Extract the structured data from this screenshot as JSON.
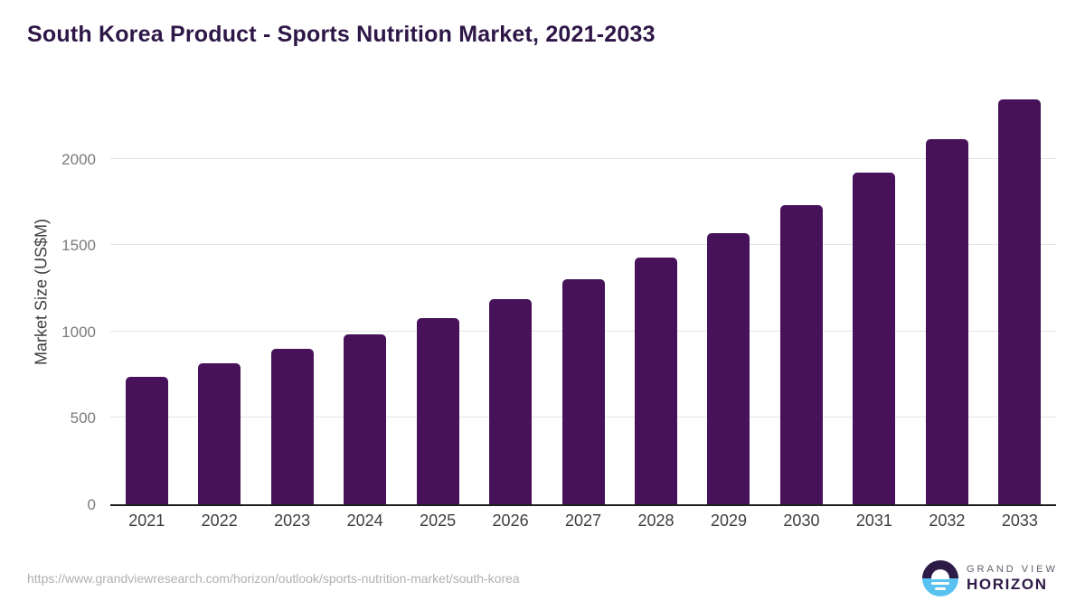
{
  "title": "South Korea Product - Sports Nutrition Market, 2021-2033",
  "chart_data": {
    "type": "bar",
    "title": "South Korea Product - Sports Nutrition Market, 2021-2033",
    "categories": [
      "2021",
      "2022",
      "2023",
      "2024",
      "2025",
      "2026",
      "2027",
      "2028",
      "2029",
      "2030",
      "2031",
      "2032",
      "2033"
    ],
    "values": [
      740,
      815,
      897,
      982,
      1076,
      1186,
      1300,
      1428,
      1570,
      1731,
      1918,
      2113,
      2344
    ],
    "xlabel": "",
    "ylabel": "Market Size (US$M)",
    "ylim": [
      0,
      2450
    ],
    "yticks": [
      0,
      500,
      1000,
      1500,
      2000
    ],
    "grid": true,
    "legend": "none",
    "bar_color": "#47125a"
  },
  "colors": {
    "title": "#2e1647",
    "bar": "#47125a",
    "axis": "#1f1f1f",
    "gridline": "#e4e4e4",
    "y_tick_label": "#7a7a7a",
    "x_tick_label": "#404040",
    "url_text": "#b0b0b0",
    "logo_purple": "#2e1a47",
    "logo_blue": "#59c2f0"
  },
  "footer": {
    "source_url": "https://www.grandviewresearch.com/horizon/outlook/sports-nutrition-market/south-korea",
    "logo": {
      "brand_top": "GRAND VIEW",
      "brand_bottom": "HORIZON",
      "icon": "horizon-sun-icon"
    }
  }
}
